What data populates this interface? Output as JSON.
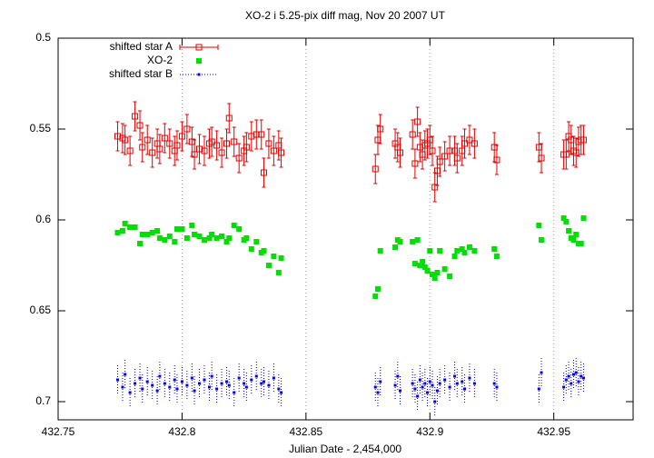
{
  "chart_data": {
    "type": "scatter",
    "title": "XO-2 i 5.25-pix diff mag, Nov 20 2007 UT",
    "x_label": "Julian Date - 2,454,000",
    "x": [
      432.774,
      432.776,
      432.777,
      432.779,
      432.781,
      432.783,
      432.784,
      432.786,
      432.788,
      432.79,
      432.791,
      432.793,
      432.795,
      432.797,
      432.798,
      432.8,
      432.802,
      432.804,
      432.805,
      432.807,
      432.809,
      432.811,
      432.812,
      432.814,
      432.816,
      432.818,
      432.819,
      432.821,
      432.823,
      432.825,
      432.826,
      432.828,
      432.83,
      432.832,
      432.833,
      432.835,
      432.837,
      432.839,
      432.84,
      432.878,
      432.879,
      432.88,
      432.886,
      432.887,
      432.888,
      432.893,
      432.894,
      432.895,
      432.896,
      432.897,
      432.898,
      432.899,
      432.9,
      432.901,
      432.902,
      432.903,
      432.904,
      432.906,
      432.908,
      432.91,
      432.911,
      432.913,
      432.914,
      432.916,
      432.918,
      432.926,
      432.927,
      432.944,
      432.945,
      432.954,
      432.955,
      432.956,
      432.957,
      432.958,
      432.959,
      432.96,
      432.961,
      432.962
    ],
    "series": [
      {
        "name": "shifted star A",
        "color": "#e00000",
        "marker": "open-square",
        "error": 0.008,
        "values": [
          0.554,
          0.555,
          0.556,
          0.562,
          0.543,
          0.548,
          0.56,
          0.556,
          0.563,
          0.558,
          0.561,
          0.555,
          0.558,
          0.562,
          0.559,
          0.554,
          0.55,
          0.557,
          0.564,
          0.561,
          0.562,
          0.558,
          0.557,
          0.559,
          0.563,
          0.558,
          0.544,
          0.557,
          0.566,
          0.562,
          0.56,
          0.554,
          0.553,
          0.553,
          0.574,
          0.558,
          0.562,
          0.559,
          0.563,
          0.572,
          0.556,
          0.55,
          0.558,
          0.56,
          0.563,
          0.553,
          0.569,
          0.546,
          0.56,
          0.564,
          0.559,
          0.558,
          0.556,
          0.562,
          0.582,
          0.573,
          0.568,
          0.565,
          0.562,
          0.562,
          0.566,
          0.562,
          0.558,
          0.556,
          0.558,
          0.56,
          0.567,
          0.56,
          0.566,
          0.564,
          0.564,
          0.554,
          0.556,
          0.562,
          0.563,
          0.557,
          0.556,
          0.556
        ]
      },
      {
        "name": "XO-2",
        "color": "#00e000",
        "marker": "filled-square",
        "values": [
          0.607,
          0.606,
          0.602,
          0.604,
          0.604,
          0.613,
          0.608,
          0.608,
          0.607,
          0.606,
          0.61,
          0.611,
          0.609,
          0.612,
          0.605,
          0.605,
          0.61,
          0.603,
          0.608,
          0.609,
          0.611,
          0.61,
          0.608,
          0.61,
          0.609,
          0.612,
          0.61,
          0.603,
          0.605,
          0.611,
          0.61,
          0.616,
          0.612,
          0.618,
          0.617,
          0.625,
          0.62,
          0.629,
          0.621,
          0.642,
          0.638,
          0.617,
          0.615,
          0.611,
          0.612,
          0.612,
          0.624,
          0.611,
          0.625,
          0.623,
          0.626,
          0.628,
          0.617,
          0.63,
          0.632,
          0.629,
          0.617,
          0.627,
          0.631,
          0.62,
          0.617,
          0.616,
          0.618,
          0.615,
          0.617,
          0.616,
          0.62,
          0.603,
          0.611,
          0.599,
          0.601,
          0.606,
          0.61,
          0.611,
          0.608,
          0.613,
          0.613,
          0.599
        ]
      },
      {
        "name": "shifted star B",
        "color": "#0000e0",
        "marker": "dot",
        "error": 0.008,
        "values": [
          0.688,
          0.692,
          0.685,
          0.695,
          0.69,
          0.687,
          0.693,
          0.689,
          0.691,
          0.694,
          0.686,
          0.69,
          0.692,
          0.688,
          0.693,
          0.689,
          0.691,
          0.687,
          0.694,
          0.69,
          0.688,
          0.692,
          0.686,
          0.693,
          0.69,
          0.689,
          0.691,
          0.695,
          0.687,
          0.69,
          0.692,
          0.688,
          0.686,
          0.69,
          0.689,
          0.691,
          0.687,
          0.693,
          0.695,
          0.692,
          0.695,
          0.689,
          0.691,
          0.686,
          0.694,
          0.69,
          0.693,
          0.697,
          0.688,
          0.692,
          0.69,
          0.695,
          0.689,
          0.691,
          0.7,
          0.694,
          0.69,
          0.688,
          0.692,
          0.686,
          0.69,
          0.689,
          0.693,
          0.687,
          0.69,
          0.69,
          0.692,
          0.693,
          0.684,
          0.692,
          0.688,
          0.686,
          0.69,
          0.685,
          0.684,
          0.689,
          0.686,
          0.687
        ]
      }
    ],
    "xlim": [
      432.75,
      432.982
    ],
    "xticks": [
      432.75,
      432.8,
      432.85,
      432.9,
      432.95
    ],
    "ylim": [
      0.5,
      0.71
    ],
    "y_reversed": true,
    "yticks": [
      0.5,
      0.55,
      0.6,
      0.65,
      0.7
    ],
    "grid": "x",
    "legend": "top-left"
  }
}
